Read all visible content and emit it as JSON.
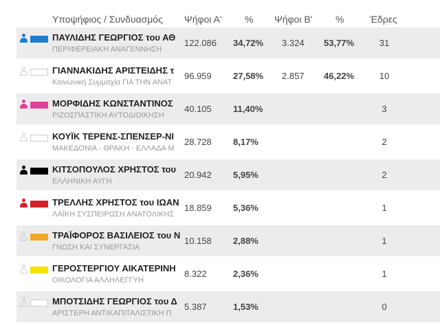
{
  "header": {
    "candidate": "Υποψήφιος / Συνδυασμός",
    "votes_a": "Ψήφοι Α'",
    "pct_a": "%",
    "votes_b": "Ψήφοι Β'",
    "pct_b": "%",
    "seats": "Έδρες"
  },
  "rows": [
    {
      "name": "ΠΑΥΛΙΔΗΣ ΓΕΩΡΓΙΟΣ του ΑΘ",
      "party": "ΠΕΡΙΦΕΡΕΙΑΚΗ ΑΝΑΓΕΝΝΗΣΗ",
      "votes_a": "122.086",
      "pct_a": "34,72%",
      "votes_b": "3.324",
      "pct_b": "53,77%",
      "seats": "31",
      "color": "#1a7fd4",
      "person_color": "#1a7fd4"
    },
    {
      "name": "ΓΙΑΝΝΑΚΙΔΗΣ ΑΡΙΣΤΕΙΔΗΣ τ",
      "party": "Κοινωνική Συμμαχία ΓΙΑ ΤΗΝ ΑΝΑΤ",
      "votes_a": "96.959",
      "pct_a": "27,58%",
      "votes_b": "2.857",
      "pct_b": "46,22%",
      "seats": "10",
      "color": "",
      "person_color": ""
    },
    {
      "name": "ΜΟΡΦΙΔΗΣ ΚΩΝΣΤΑΝΤΙΝΟΣ",
      "party": "ΡΙΖΟΣΠΑΣΤΙΚΗ ΑΥΤΟΔΙΟΙΚΗΣΗ",
      "votes_a": "40.105",
      "pct_a": "11,40%",
      "votes_b": "",
      "pct_b": "",
      "seats": "3",
      "color": "#e0409a",
      "person_color": "#e0409a"
    },
    {
      "name": "ΚΟΥΪΚ ΤΕΡΕΝΣ-ΣΠΕΝΣΕΡ-ΝΙ",
      "party": "ΜΑΚΕΔΟΝΙΑ - ΘΡΑΚΗ - ΕΛΛΑΔΑ Μ",
      "votes_a": "28.728",
      "pct_a": "8,17%",
      "votes_b": "",
      "pct_b": "",
      "seats": "2",
      "color": "",
      "person_color": ""
    },
    {
      "name": "ΚΙΤΣΟΠΟΥΛΟΣ ΧΡΗΣΤΟΣ του",
      "party": "ΕΛΛΗΝΙΚΗ ΑΥΓΗ",
      "votes_a": "20.942",
      "pct_a": "5,95%",
      "votes_b": "",
      "pct_b": "",
      "seats": "2",
      "color": "#000000",
      "person_color": "#000000"
    },
    {
      "name": "ΤΡΕΛΛΗΣ ΧΡΗΣΤΟΣ του ΙΩΑΝ",
      "party": "ΛΑΪΚΗ ΣΥΣΠΕΙΡΩΣΗ ΑΝΑΤΟΛΙΚΗΣ",
      "votes_a": "18.859",
      "pct_a": "5,36%",
      "votes_b": "",
      "pct_b": "",
      "seats": "1",
      "color": "#d4202a",
      "person_color": "#d4202a"
    },
    {
      "name": "ΤΡΑΪΦΟΡΟΣ ΒΑΣΙΛΕΙΟΣ του Ν",
      "party": "ΓΝΩΣΗ ΚΑΙ ΣΥΝΕΡΓΑΣΙΑ",
      "votes_a": "10.158",
      "pct_a": "2,88%",
      "votes_b": "",
      "pct_b": "",
      "seats": "1",
      "color": "#f5a623",
      "person_color": ""
    },
    {
      "name": "ΓΕΡΟΣΤΕΡΓΙΟΥ ΑΙΚΑΤΕΡΙΝΗ",
      "party": "ΟΙΚΟΛΟΓΙΑ ΑΛΛΗΛΕΓΓΥΗ",
      "votes_a": "8.322",
      "pct_a": "2,36%",
      "votes_b": "",
      "pct_b": "",
      "seats": "1",
      "color": "#f7e000",
      "person_color": ""
    },
    {
      "name": "ΜΠΟΤΣΙΔΗΣ ΓΕΩΡΓΙΟΣ του Δ",
      "party": "ΑΡΙΣΤΕΡΗ ΑΝΤΙΚΑΠΙΤΑΛΙΣΤΙΚΗ Π",
      "votes_a": "5.387",
      "pct_a": "1,53%",
      "votes_b": "",
      "pct_b": "",
      "seats": "0",
      "color": "",
      "person_color": ""
    }
  ]
}
